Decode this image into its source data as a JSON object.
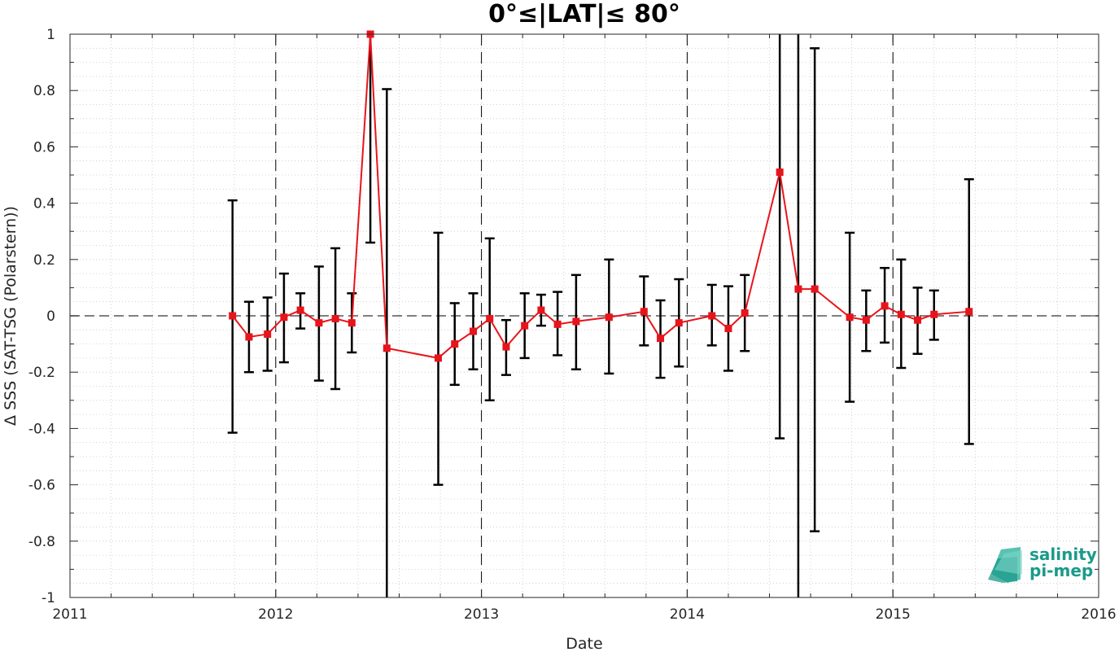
{
  "chart_data": {
    "type": "line",
    "title": "0°≤|LAT|≤ 80°",
    "xlabel": "Date",
    "ylabel": "Δ SSS (SAT-TSG (Polarstern))",
    "xlim": [
      2011,
      2016
    ],
    "ylim": [
      -1,
      1
    ],
    "x_ticks": [
      "2011",
      "2012",
      "2013",
      "2014",
      "2015",
      "2016"
    ],
    "y_ticks": [
      "1",
      "0.8",
      "0.6",
      "0.4",
      "0.2",
      "0",
      "-0.2",
      "-0.4",
      "-0.6",
      "-0.8",
      "-1"
    ],
    "grid": "minor dotted",
    "reference_line": 0,
    "year_separators": [
      2012,
      2013,
      2014,
      2015
    ],
    "colors": {
      "series": "#e8141b",
      "errorbar": "#000000",
      "logo": "#1a9a8a"
    },
    "series": [
      {
        "type": "errorbar-line",
        "x": [
          2011.79,
          2011.87,
          2011.96,
          2012.04,
          2012.12,
          2012.21,
          2012.29,
          2012.37,
          2012.46,
          2012.54,
          2012.79,
          2012.87,
          2012.96,
          2013.04,
          2013.12,
          2013.21,
          2013.29,
          2013.37,
          2013.46,
          2013.62,
          2013.79,
          2013.87,
          2013.96,
          2014.12,
          2014.2,
          2014.28,
          2014.45,
          2014.54,
          2014.62,
          2014.79,
          2014.87,
          2014.96,
          2015.04,
          2015.12,
          2015.2,
          2015.37
        ],
        "y": [
          0.0,
          -0.075,
          -0.065,
          -0.005,
          0.02,
          -0.025,
          -0.01,
          -0.025,
          1.0,
          -0.115,
          -0.15,
          -0.1,
          -0.055,
          -0.01,
          -0.11,
          -0.035,
          0.02,
          -0.03,
          -0.02,
          -0.005,
          0.015,
          -0.08,
          -0.025,
          0.0,
          -0.045,
          0.01,
          0.51,
          0.095,
          0.095,
          -0.005,
          -0.015,
          0.035,
          0.005,
          -0.015,
          0.005,
          0.015
        ],
        "lower": [
          -0.415,
          -0.2,
          -0.195,
          -0.165,
          -0.045,
          -0.23,
          -0.26,
          -0.13,
          0.26,
          -1.0,
          -0.6,
          -0.245,
          -0.19,
          -0.3,
          -0.21,
          -0.15,
          -0.035,
          -0.14,
          -0.19,
          -0.205,
          -0.105,
          -0.22,
          -0.18,
          -0.105,
          -0.195,
          -0.125,
          -0.435,
          -1.0,
          -0.765,
          -0.305,
          -0.125,
          -0.095,
          -0.185,
          -0.135,
          -0.085,
          -0.455
        ],
        "upper": [
          0.41,
          0.05,
          0.065,
          0.15,
          0.08,
          0.175,
          0.24,
          0.08,
          1.0,
          0.805,
          0.295,
          0.045,
          0.08,
          0.275,
          -0.015,
          0.08,
          0.075,
          0.085,
          0.145,
          0.2,
          0.14,
          0.055,
          0.13,
          0.11,
          0.105,
          0.145,
          1.0,
          1.0,
          0.95,
          0.295,
          0.09,
          0.17,
          0.2,
          0.1,
          0.09,
          0.485
        ]
      }
    ]
  },
  "logo": {
    "line1": "salinity",
    "line2": "pi-mep"
  }
}
